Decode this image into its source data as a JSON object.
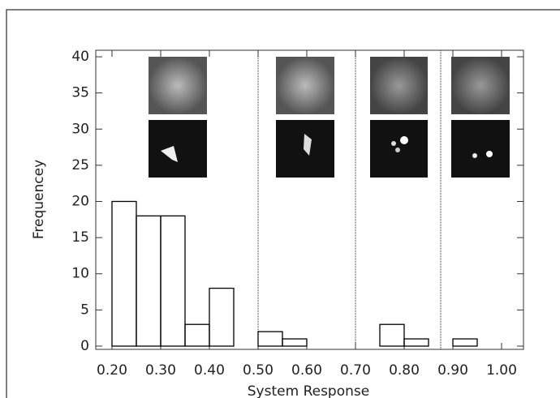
{
  "chart_data": {
    "type": "histogram",
    "xlabel": "System Response",
    "ylabel": "Frequencey",
    "bins": [
      0.2,
      0.25,
      0.3,
      0.35,
      0.4,
      0.45,
      0.5,
      0.55,
      0.6,
      0.65,
      0.7,
      0.75,
      0.8,
      0.85,
      0.9,
      0.95,
      1.0
    ],
    "values": [
      20,
      18,
      18,
      3,
      8,
      0,
      2,
      1,
      0,
      0,
      0,
      3,
      1,
      0,
      1,
      0
    ],
    "color": "#000000",
    "dividers": [
      0.5,
      0.7,
      0.875
    ],
    "xlim": [
      0.1667,
      1.045
    ],
    "ylim": [
      -0.45,
      40.9
    ],
    "xticks": [
      {
        "value": 0.2,
        "label": "0.20"
      },
      {
        "value": 0.3,
        "label": "0.30"
      },
      {
        "value": 0.4,
        "label": "0.40"
      },
      {
        "value": 0.5,
        "label": "0.50"
      },
      {
        "value": 0.6,
        "label": "0.60"
      },
      {
        "value": 0.7,
        "label": "0.70"
      },
      {
        "value": 0.8,
        "label": "0.80"
      },
      {
        "value": 0.9,
        "label": "0.90"
      },
      {
        "value": 1.0,
        "label": "1.00"
      }
    ],
    "yticks": [
      0,
      5,
      10,
      15,
      20,
      25,
      30,
      35,
      40
    ]
  }
}
